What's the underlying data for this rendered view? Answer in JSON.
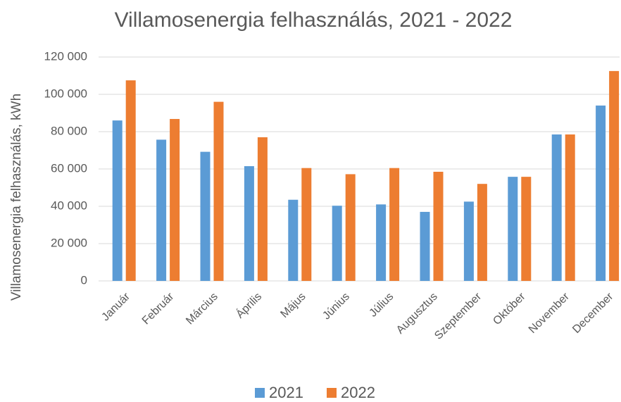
{
  "chart_data": {
    "type": "bar",
    "title": "Villamosenergia felhasználás, 2021 - 2022",
    "y_label": "Villamosenergia felhasználás, kWh",
    "categories": [
      "Január",
      "Február",
      "Március",
      "Április",
      "Május",
      "Június",
      "Július",
      "Augusztus",
      "Szeptember",
      "Október",
      "November",
      "December"
    ],
    "series": [
      {
        "name": "2021",
        "color": "#5b9bd5",
        "values": [
          86000,
          75700,
          69200,
          61500,
          43500,
          40300,
          41000,
          37000,
          42500,
          55800,
          78500,
          94000
        ]
      },
      {
        "name": "2022",
        "color": "#ed7d31",
        "values": [
          107500,
          86800,
          96000,
          77000,
          60500,
          57200,
          60500,
          58500,
          52000,
          55800,
          78500,
          112500
        ]
      }
    ],
    "ylim": [
      0,
      120000
    ],
    "yticks": [
      0,
      {
        "value": 20000,
        "label": "20 000"
      },
      {
        "value": 40000,
        "label": "40 000"
      },
      {
        "value": 60000,
        "label": "60 000"
      },
      {
        "value": 80000,
        "label": "80 000"
      },
      {
        "value": 100000,
        "label": "100 000"
      },
      {
        "value": 120000,
        "label": "120 000"
      }
    ],
    "grid": true,
    "legend": "bottom"
  }
}
